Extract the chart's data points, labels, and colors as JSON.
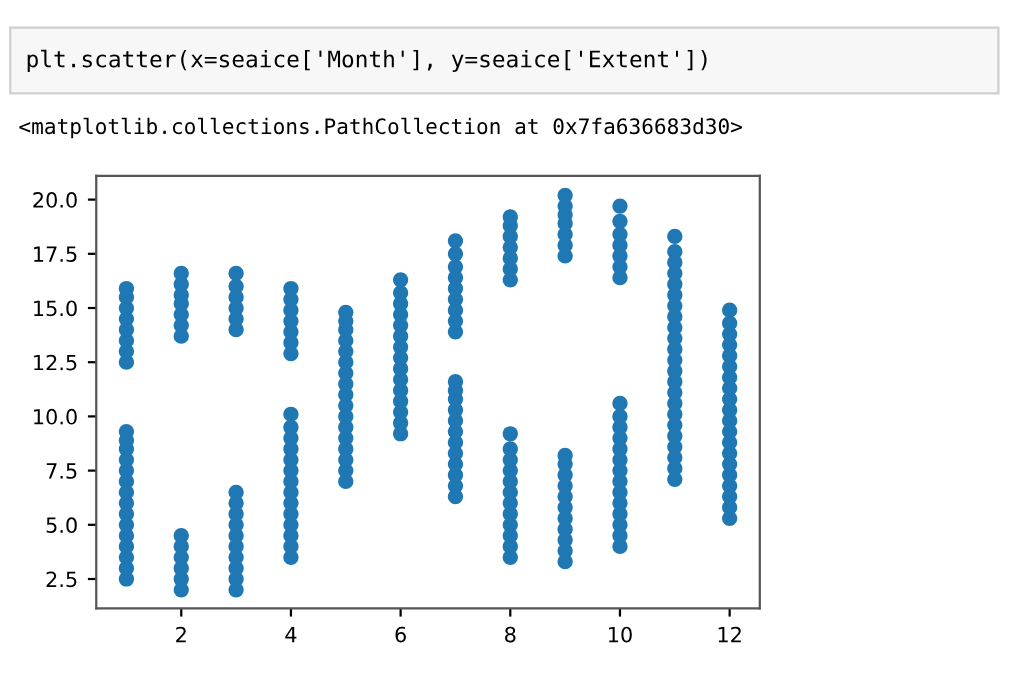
{
  "chart_data": {
    "type": "scatter",
    "annotations": [
      "plt.scatter(x=seaice['Month'], y=seaice['Extent'])",
      "<matplotlib.collections.PathCollection at 0x7fa636683d30>"
    ],
    "series": [
      {
        "color": "#1f77b4",
        "x": [
          1,
          1,
          1,
          1,
          1,
          1,
          1,
          1,
          1,
          1,
          1,
          1,
          1,
          1,
          1
        ],
        "values": [
          2.5,
          3,
          3.5,
          4,
          4.5,
          5,
          5.5,
          6,
          6.5,
          7,
          7.5,
          8,
          8.5,
          8.9,
          9.3
        ]
      },
      {
        "color": "#1f77b4",
        "x": [
          1,
          1,
          1,
          1,
          1,
          1,
          1,
          1
        ],
        "values": [
          12.5,
          13,
          13.5,
          14,
          14.5,
          15,
          15.5,
          15.9
        ]
      },
      {
        "color": "#1f77b4",
        "x": [
          2,
          2,
          2,
          2,
          2,
          2
        ],
        "values": [
          2.0,
          2.5,
          3,
          3.5,
          4,
          4.5
        ]
      },
      {
        "color": "#1f77b4",
        "x": [
          2,
          2,
          2,
          2,
          2,
          2,
          2
        ],
        "values": [
          13.7,
          14.2,
          14.7,
          15.2,
          15.6,
          16.1,
          16.6
        ]
      },
      {
        "color": "#1f77b4",
        "x": [
          3,
          3,
          3,
          3,
          3,
          3,
          3,
          3,
          3,
          3
        ],
        "values": [
          2.0,
          2.5,
          3,
          3.5,
          4,
          4.5,
          5,
          5.5,
          6,
          6.5
        ]
      },
      {
        "color": "#1f77b4",
        "x": [
          3,
          3,
          3,
          3,
          3,
          3
        ],
        "values": [
          14.0,
          14.5,
          15,
          15.5,
          16,
          16.6
        ]
      },
      {
        "color": "#1f77b4",
        "x": [
          4,
          4,
          4,
          4,
          4,
          4,
          4,
          4,
          4,
          4,
          4,
          4,
          4,
          4
        ],
        "values": [
          3.5,
          4,
          4.5,
          5,
          5.5,
          6,
          6.5,
          7,
          7.5,
          8,
          8.5,
          9,
          9.5,
          10.1
        ]
      },
      {
        "color": "#1f77b4",
        "x": [
          4,
          4,
          4,
          4,
          4,
          4,
          4
        ],
        "values": [
          12.9,
          13.4,
          13.9,
          14.4,
          14.9,
          15.4,
          15.9
        ]
      },
      {
        "color": "#1f77b4",
        "x": [
          5,
          5,
          5,
          5,
          5,
          5,
          5,
          5,
          5,
          5,
          5,
          5,
          5,
          5,
          5,
          5,
          5
        ],
        "values": [
          7.0,
          7.5,
          8,
          8.5,
          9,
          9.5,
          10,
          10.5,
          11,
          11.5,
          12,
          12.5,
          13,
          13.5,
          14,
          14.4,
          14.8
        ]
      },
      {
        "color": "#1f77b4",
        "x": [
          6,
          6,
          6,
          6,
          6,
          6,
          6,
          6,
          6,
          6,
          6,
          6,
          6,
          6,
          6
        ],
        "values": [
          9.2,
          9.7,
          10.2,
          10.7,
          11.2,
          11.7,
          12.2,
          12.7,
          13.2,
          13.7,
          14.2,
          14.7,
          15.2,
          15.7,
          16.3
        ]
      },
      {
        "color": "#1f77b4",
        "x": [
          7,
          7,
          7,
          7,
          7,
          7,
          7,
          7,
          7,
          7,
          7,
          7
        ],
        "values": [
          6.3,
          6.8,
          7.3,
          7.8,
          8.3,
          8.8,
          9.3,
          9.8,
          10.3,
          10.8,
          11.2,
          11.6
        ]
      },
      {
        "color": "#1f77b4",
        "x": [
          7,
          7,
          7,
          7,
          7,
          7,
          7,
          7,
          7
        ],
        "values": [
          13.9,
          14.4,
          14.9,
          15.4,
          15.9,
          16.4,
          16.9,
          17.5,
          18.1
        ]
      },
      {
        "color": "#1f77b4",
        "x": [
          8,
          8,
          8,
          8,
          8,
          8,
          8,
          8,
          8,
          8,
          8,
          8
        ],
        "values": [
          3.5,
          4,
          4.5,
          5,
          5.5,
          6,
          6.5,
          7,
          7.5,
          8,
          8.5,
          9.2
        ]
      },
      {
        "color": "#1f77b4",
        "x": [
          8,
          8,
          8,
          8,
          8,
          8,
          8
        ],
        "values": [
          16.3,
          16.8,
          17.3,
          17.8,
          18.3,
          18.8,
          19.2
        ]
      },
      {
        "color": "#1f77b4",
        "x": [
          9,
          9,
          9,
          9,
          9,
          9,
          9,
          9,
          9,
          9,
          9
        ],
        "values": [
          3.3,
          3.8,
          4.3,
          4.8,
          5.3,
          5.8,
          6.3,
          6.8,
          7.3,
          7.8,
          8.2
        ]
      },
      {
        "color": "#1f77b4",
        "x": [
          9,
          9,
          9,
          9,
          9,
          9,
          9
        ],
        "values": [
          17.4,
          17.9,
          18.4,
          18.9,
          19.3,
          19.7,
          20.2
        ]
      },
      {
        "color": "#1f77b4",
        "x": [
          10,
          10,
          10,
          10,
          10,
          10,
          10,
          10,
          10,
          10,
          10,
          10,
          10,
          10
        ],
        "values": [
          4.0,
          4.5,
          5,
          5.5,
          6,
          6.5,
          7,
          7.5,
          8,
          8.5,
          9,
          9.5,
          10,
          10.6
        ]
      },
      {
        "color": "#1f77b4",
        "x": [
          10,
          10,
          10,
          10,
          10,
          10,
          10
        ],
        "values": [
          16.4,
          16.9,
          17.4,
          17.9,
          18.4,
          19.0,
          19.7
        ]
      },
      {
        "color": "#1f77b4",
        "x": [
          11,
          11,
          11,
          11,
          11,
          11,
          11,
          11,
          11,
          11,
          11,
          11,
          11,
          11,
          11,
          11,
          11,
          11,
          11,
          11,
          11,
          11,
          11
        ],
        "values": [
          7.1,
          7.6,
          8.1,
          8.6,
          9.1,
          9.6,
          10.1,
          10.6,
          11.1,
          11.6,
          12.1,
          12.6,
          13.1,
          13.6,
          14.1,
          14.6,
          15.1,
          15.6,
          16.1,
          16.6,
          17.1,
          17.6,
          18.3
        ]
      },
      {
        "color": "#1f77b4",
        "x": [
          12,
          12,
          12,
          12,
          12,
          12,
          12,
          12,
          12,
          12,
          12,
          12,
          12,
          12,
          12,
          12,
          12,
          12,
          12,
          12
        ],
        "values": [
          5.3,
          5.8,
          6.3,
          6.8,
          7.3,
          7.8,
          8.3,
          8.8,
          9.3,
          9.8,
          10.3,
          10.8,
          11.3,
          11.8,
          12.3,
          12.8,
          13.3,
          13.8,
          14.3,
          14.9
        ]
      }
    ],
    "marker": "circle",
    "xlim": [
      0.45,
      12.55
    ],
    "xticks": [
      2,
      4,
      6,
      8,
      10,
      12
    ],
    "ylim": [
      1.15,
      21.1
    ],
    "yticks": [
      2.5,
      {
        "value": 5,
        "label": "5.0"
      },
      7.5,
      {
        "value": 10,
        "label": "10.0"
      },
      12.5,
      {
        "value": 15,
        "label": "15.0"
      },
      17.5,
      {
        "value": 20,
        "label": "20.0"
      }
    ],
    "grid": false
  }
}
